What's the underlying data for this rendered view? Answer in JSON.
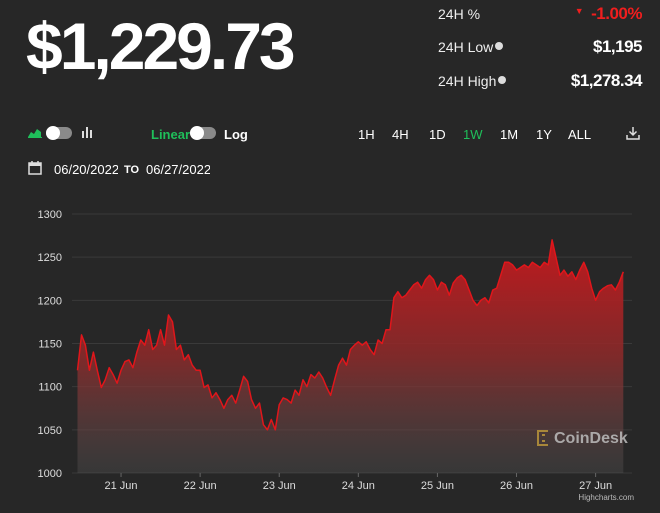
{
  "price": "$1,229.73",
  "stats": [
    {
      "label": "24H %",
      "value": "-1.00%"
    },
    {
      "label": "24H Low",
      "value": "$1,195"
    },
    {
      "label": "24H High",
      "value": "$1,278.34"
    }
  ],
  "controls": {
    "linear": "Linear",
    "log": "Log",
    "ranges": [
      "1H",
      "4H",
      "1D",
      "1W",
      "1M",
      "1Y",
      "ALL"
    ],
    "active_range": "1W"
  },
  "dates": {
    "from": "06/20/2022",
    "to_label": "TO",
    "to": "06/27/2022"
  },
  "watermark": "CoinDesk",
  "credit": "Highcharts.com",
  "chart_data": {
    "type": "area",
    "color": "#e0161b",
    "x": [
      20.45,
      20.5,
      20.55,
      20.6,
      20.65,
      20.7,
      20.75,
      20.8,
      20.85,
      20.9,
      20.95,
      21,
      21.05,
      21.1,
      21.15,
      21.2,
      21.25,
      21.3,
      21.35,
      21.4,
      21.45,
      21.5,
      21.55,
      21.6,
      21.65,
      21.7,
      21.75,
      21.8,
      21.85,
      21.9,
      21.95,
      22,
      22.05,
      22.1,
      22.15,
      22.2,
      22.25,
      22.3,
      22.35,
      22.4,
      22.45,
      22.5,
      22.55,
      22.6,
      22.65,
      22.7,
      22.75,
      22.8,
      22.85,
      22.9,
      22.95,
      23,
      23.05,
      23.1,
      23.15,
      23.2,
      23.25,
      23.3,
      23.35,
      23.4,
      23.45,
      23.5,
      23.55,
      23.6,
      23.65,
      23.7,
      23.75,
      23.8,
      23.85,
      23.9,
      23.95,
      24,
      24.05,
      24.1,
      24.15,
      24.2,
      24.25,
      24.3,
      24.35,
      24.4,
      24.45,
      24.5,
      24.55,
      24.6,
      24.65,
      24.7,
      24.75,
      24.8,
      24.85,
      24.9,
      24.95,
      25,
      25.05,
      25.1,
      25.15,
      25.2,
      25.25,
      25.3,
      25.35,
      25.4,
      25.45,
      25.5,
      25.55,
      25.6,
      25.65,
      25.7,
      25.75,
      25.8,
      25.85,
      25.9,
      25.95,
      26,
      26.05,
      26.1,
      26.15,
      26.2,
      26.25,
      26.3,
      26.35,
      26.4,
      26.45,
      26.5,
      26.55,
      26.6,
      26.65,
      26.7,
      26.75,
      26.8,
      26.85,
      26.9,
      26.95,
      27,
      27.05,
      27.1,
      27.15,
      27.2,
      27.25,
      27.3,
      27.35
    ],
    "values": [
      1119,
      1160,
      1148,
      1119,
      1140,
      1119,
      1099,
      1108,
      1122,
      1114,
      1104,
      1119,
      1129,
      1131,
      1122,
      1140,
      1154,
      1148,
      1166,
      1143,
      1148,
      1166,
      1148,
      1183,
      1175,
      1143,
      1148,
      1131,
      1137,
      1125,
      1119,
      1119,
      1099,
      1102,
      1087,
      1093,
      1085,
      1075,
      1085,
      1090,
      1081,
      1096,
      1112,
      1106,
      1085,
      1075,
      1081,
      1056,
      1050,
      1062,
      1050,
      1079,
      1087,
      1085,
      1081,
      1096,
      1090,
      1108,
      1100,
      1114,
      1110,
      1117,
      1110,
      1099,
      1090,
      1108,
      1125,
      1133,
      1125,
      1143,
      1148,
      1152,
      1148,
      1152,
      1143,
      1137,
      1154,
      1150,
      1166,
      1166,
      1203,
      1210,
      1203,
      1206,
      1212,
      1218,
      1221,
      1214,
      1224,
      1229,
      1224,
      1212,
      1221,
      1218,
      1206,
      1220,
      1226,
      1229,
      1224,
      1212,
      1200,
      1194,
      1200,
      1203,
      1197,
      1212,
      1214,
      1229,
      1244,
      1244,
      1241,
      1235,
      1238,
      1241,
      1238,
      1244,
      1241,
      1238,
      1244,
      1241,
      1270,
      1249,
      1229,
      1235,
      1228,
      1233,
      1224,
      1235,
      1244,
      1233,
      1214,
      1200,
      1210,
      1214,
      1217,
      1218,
      1212,
      1221,
      1233
    ],
    "xlim": [
      20.38,
      27.46
    ],
    "xticks": [
      {
        "value": 21,
        "label": "21 Jun"
      },
      {
        "value": 22,
        "label": "22 Jun"
      },
      {
        "value": 23,
        "label": "23 Jun"
      },
      {
        "value": 24,
        "label": "24 Jun"
      },
      {
        "value": 25,
        "label": "25 Jun"
      },
      {
        "value": 26,
        "label": "26 Jun"
      },
      {
        "value": 27,
        "label": "27 Jun"
      }
    ],
    "ylim": [
      1000,
      1300
    ],
    "yticks": [
      1000,
      1050,
      1100,
      1150,
      1200,
      1250,
      1300
    ],
    "grid": true
  }
}
